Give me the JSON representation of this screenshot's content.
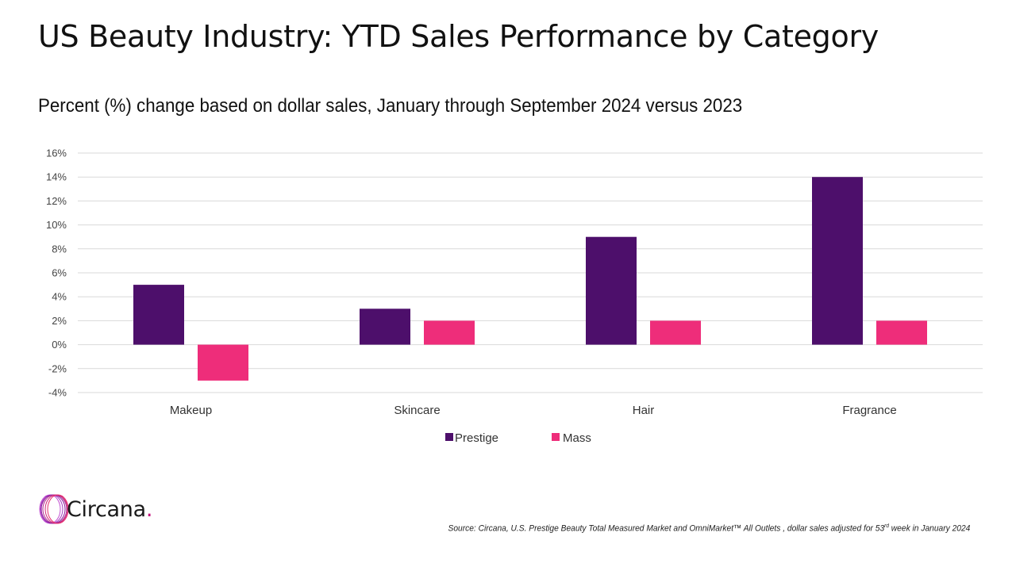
{
  "title": "US Beauty Industry: YTD Sales Performance by Category",
  "subtitle": "Percent (%) change based on dollar sales, January through September 2024 versus 2023",
  "chart_data": {
    "type": "bar",
    "title": "US Beauty Industry: YTD Sales Performance by Category",
    "subtitle": "Percent (%) change based on dollar sales, January through September 2024 versus 2023",
    "categories": [
      "Makeup",
      "Skincare",
      "Hair",
      "Fragrance"
    ],
    "series": [
      {
        "name": "Prestige",
        "color": "#4d0f6b",
        "values": [
          5,
          3,
          9,
          14
        ]
      },
      {
        "name": "Mass",
        "color": "#ee2d7a",
        "values": [
          -3,
          2,
          2,
          2
        ]
      }
    ],
    "ylim": [
      -4,
      16
    ],
    "yticks": [
      -4,
      -2,
      0,
      2,
      4,
      6,
      8,
      10,
      12,
      14,
      16
    ],
    "ytick_labels": [
      "-4%",
      "-2%",
      "0%",
      "2%",
      "4%",
      "6%",
      "8%",
      "10%",
      "12%",
      "14%",
      "16%"
    ],
    "unit": "%",
    "grid": true,
    "legend_position": "bottom-center"
  },
  "logo": {
    "text": "Circana",
    "dot": ".",
    "ring_color": "#8b1a9e"
  },
  "source": {
    "prefix": "Source: Circana, U.S. Prestige Beauty Total Measured Market and OmniMarket™ All Outlets , dollar sales adjusted for 53",
    "superscript": "rd",
    "suffix": " week in January 2024"
  }
}
